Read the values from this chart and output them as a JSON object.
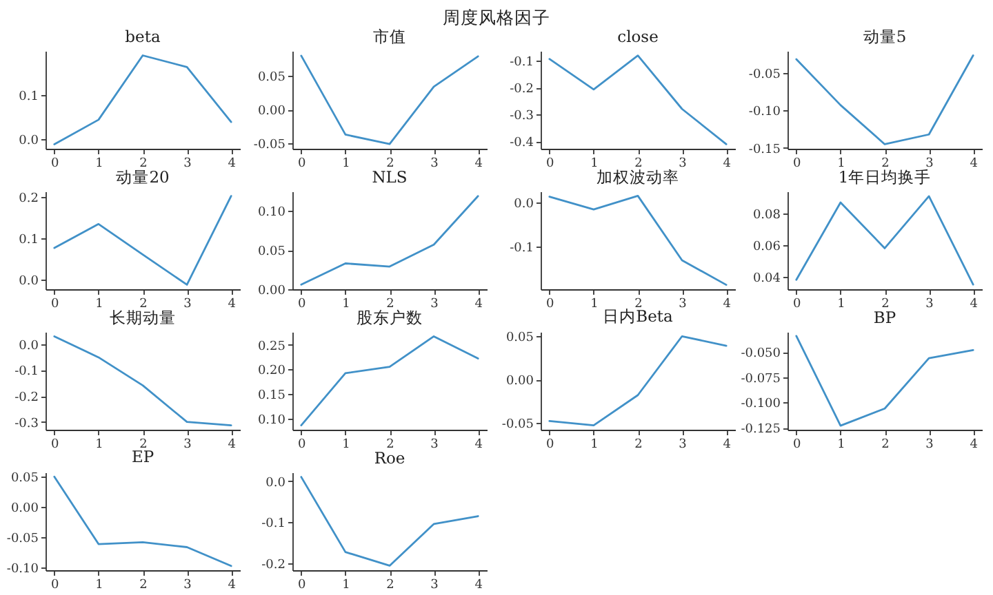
{
  "chart_data": [
    {
      "type": "other",
      "title": "周度风格因子"
    },
    {
      "type": "line",
      "title": "beta",
      "x": [
        0,
        1,
        2,
        3,
        4
      ],
      "values": [
        -0.011,
        0.044,
        0.188,
        0.162,
        0.039
      ],
      "color": "#4191c8",
      "xlim": [
        -0.2,
        4.2
      ],
      "xticks": [
        0,
        1,
        2,
        3,
        4
      ],
      "ylim": [
        -0.021,
        0.198
      ],
      "yticks": [
        {
          "value": 0,
          "label": "0.0"
        },
        0.1
      ]
    },
    {
      "type": "line",
      "title": "市值",
      "x": [
        0,
        1,
        2,
        3,
        4
      ],
      "values": [
        0.08,
        -0.037,
        -0.051,
        0.034,
        0.079
      ],
      "color": "#4191c8",
      "xlim": [
        -0.2,
        4.2
      ],
      "xticks": [
        0,
        1,
        2,
        3,
        4
      ],
      "ylim": [
        -0.058,
        0.087
      ],
      "yticks": [
        -0.05,
        {
          "value": 0,
          "label": "0.00"
        },
        0.05
      ]
    },
    {
      "type": "line",
      "title": "close",
      "x": [
        0,
        1,
        2,
        3,
        4
      ],
      "values": [
        -0.093,
        -0.206,
        -0.08,
        -0.279,
        -0.41
      ],
      "color": "#4191c8",
      "xlim": [
        -0.2,
        4.2
      ],
      "xticks": [
        0,
        1,
        2,
        3,
        4
      ],
      "ylim": [
        -0.427,
        -0.063
      ],
      "yticks": [
        -0.4,
        -0.3,
        -0.2,
        -0.1
      ]
    },
    {
      "type": "line",
      "title": "动量5",
      "x": [
        0,
        1,
        2,
        3,
        4
      ],
      "values": [
        -0.032,
        -0.093,
        -0.145,
        -0.132,
        -0.027
      ],
      "color": "#4191c8",
      "xlim": [
        -0.2,
        4.2
      ],
      "xticks": [
        0,
        1,
        2,
        3,
        4
      ],
      "ylim": [
        -0.151,
        -0.021
      ],
      "yticks": [
        -0.15,
        {
          "value": -0.1,
          "label": "-0.10"
        },
        -0.05
      ]
    },
    {
      "type": "line",
      "title": "动量20",
      "x": [
        0,
        1,
        2,
        3,
        4
      ],
      "values": [
        0.077,
        0.135,
        0.061,
        -0.012,
        0.203
      ],
      "color": "#4191c8",
      "xlim": [
        -0.2,
        4.2
      ],
      "xticks": [
        0,
        1,
        2,
        3,
        4
      ],
      "ylim": [
        -0.023,
        0.214
      ],
      "yticks": [
        {
          "value": 0,
          "label": "0.0"
        },
        0.1,
        0.2
      ]
    },
    {
      "type": "line",
      "title": "NLS",
      "x": [
        0,
        1,
        2,
        3,
        4
      ],
      "values": [
        0.006,
        0.033,
        0.029,
        0.057,
        0.119
      ],
      "color": "#4191c8",
      "xlim": [
        -0.2,
        4.2
      ],
      "xticks": [
        0,
        1,
        2,
        3,
        4
      ],
      "ylim": [
        0.0,
        0.125
      ],
      "yticks": [
        {
          "value": 0,
          "label": "0.00"
        },
        0.05,
        {
          "value": 0.1,
          "label": "0.10"
        }
      ]
    },
    {
      "type": "line",
      "title": "加权波动率",
      "x": [
        0,
        1,
        2,
        3,
        4
      ],
      "values": [
        0.013,
        -0.016,
        0.015,
        -0.132,
        -0.188
      ],
      "color": "#4191c8",
      "xlim": [
        -0.2,
        4.2
      ],
      "xticks": [
        0,
        1,
        2,
        3,
        4
      ],
      "ylim": [
        -0.198,
        0.025
      ],
      "yticks": [
        -0.1,
        {
          "value": 0,
          "label": "0.0"
        }
      ]
    },
    {
      "type": "line",
      "title": "1年日均换手",
      "x": [
        0,
        1,
        2,
        3,
        4
      ],
      "values": [
        0.038,
        0.087,
        0.058,
        0.091,
        0.035
      ],
      "color": "#4191c8",
      "xlim": [
        -0.2,
        4.2
      ],
      "xticks": [
        0,
        1,
        2,
        3,
        4
      ],
      "ylim": [
        0.032,
        0.094
      ],
      "yticks": [
        0.04,
        0.06,
        0.08
      ]
    },
    {
      "type": "line",
      "title": "长期动量",
      "x": [
        0,
        1,
        2,
        3,
        4
      ],
      "values": [
        0.03,
        -0.051,
        -0.159,
        -0.3,
        -0.313
      ],
      "color": "#4191c8",
      "xlim": [
        -0.2,
        4.2
      ],
      "xticks": [
        0,
        1,
        2,
        3,
        4
      ],
      "ylim": [
        -0.33,
        0.047
      ],
      "yticks": [
        -0.3,
        -0.2,
        -0.1,
        {
          "value": 0,
          "label": "0.0"
        }
      ]
    },
    {
      "type": "line",
      "title": "股东户数",
      "x": [
        0,
        1,
        2,
        3,
        4
      ],
      "values": [
        0.086,
        0.192,
        0.205,
        0.267,
        0.222
      ],
      "color": "#4191c8",
      "xlim": [
        -0.2,
        4.2
      ],
      "xticks": [
        0,
        1,
        2,
        3,
        4
      ],
      "ylim": [
        0.077,
        0.276
      ],
      "yticks": [
        {
          "value": 0.1,
          "label": "0.10"
        },
        0.15,
        {
          "value": 0.2,
          "label": "0.20"
        },
        0.25
      ]
    },
    {
      "type": "line",
      "title": "日内Beta",
      "x": [
        0,
        1,
        2,
        3,
        4
      ],
      "values": [
        -0.048,
        -0.053,
        -0.018,
        0.05,
        0.039
      ],
      "color": "#4191c8",
      "xlim": [
        -0.2,
        4.2
      ],
      "xticks": [
        0,
        1,
        2,
        3,
        4
      ],
      "ylim": [
        -0.058,
        0.055
      ],
      "yticks": [
        -0.05,
        {
          "value": 0,
          "label": "0.00"
        },
        0.05
      ]
    },
    {
      "type": "line",
      "title": "BP",
      "x": [
        0,
        1,
        2,
        3,
        4
      ],
      "values": [
        -0.034,
        -0.123,
        -0.106,
        -0.056,
        -0.048
      ],
      "color": "#4191c8",
      "xlim": [
        -0.2,
        4.2
      ],
      "xticks": [
        0,
        1,
        2,
        3,
        4
      ],
      "ylim": [
        -0.127,
        -0.03
      ],
      "yticks": [
        -0.125,
        {
          "value": -0.1,
          "label": "-0.100"
        },
        -0.075,
        {
          "value": -0.05,
          "label": "-0.050"
        }
      ]
    },
    {
      "type": "line",
      "title": "EP",
      "x": [
        0,
        1,
        2,
        3,
        4
      ],
      "values": [
        0.05,
        -0.061,
        -0.058,
        -0.066,
        -0.097
      ],
      "color": "#4191c8",
      "xlim": [
        -0.2,
        4.2
      ],
      "xticks": [
        0,
        1,
        2,
        3,
        4
      ],
      "ylim": [
        -0.104,
        0.057
      ],
      "yticks": [
        {
          "value": -0.1,
          "label": "-0.10"
        },
        -0.05,
        {
          "value": 0,
          "label": "0.00"
        },
        0.05
      ]
    },
    {
      "type": "line",
      "title": "Roe",
      "x": [
        0,
        1,
        2,
        3,
        4
      ],
      "values": [
        0.01,
        -0.172,
        -0.205,
        -0.104,
        -0.085
      ],
      "color": "#4191c8",
      "xlim": [
        -0.2,
        4.2
      ],
      "xticks": [
        0,
        1,
        2,
        3,
        4
      ],
      "ylim": [
        -0.216,
        0.021
      ],
      "yticks": [
        -0.2,
        -0.1,
        {
          "value": 0,
          "label": "0.0"
        }
      ]
    }
  ]
}
